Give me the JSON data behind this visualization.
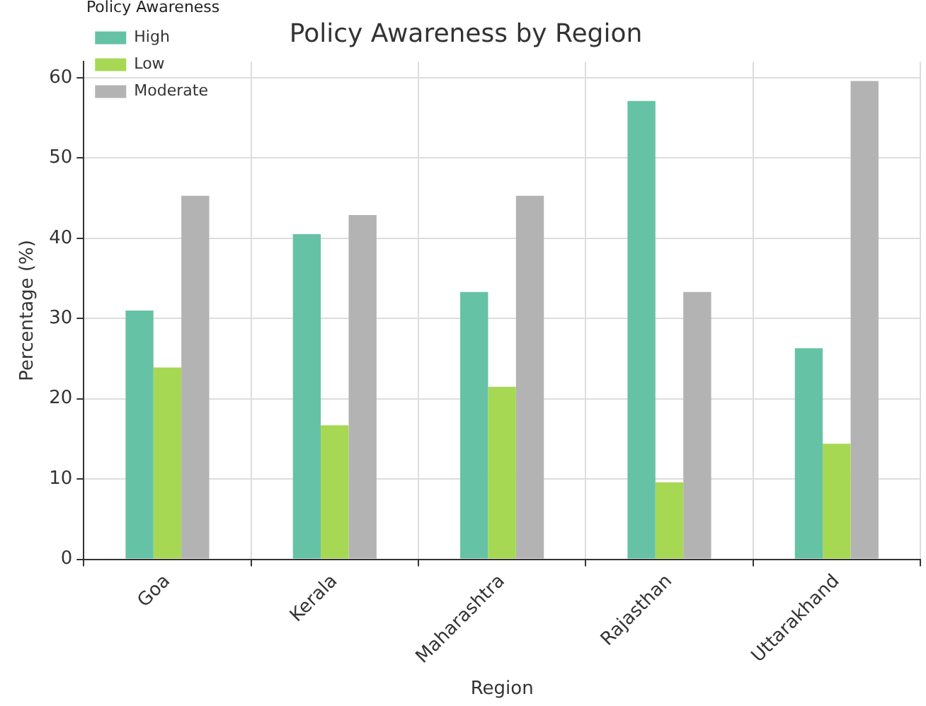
{
  "chart_data": {
    "type": "bar",
    "title": "Policy Awareness by Region",
    "xlabel": "Region",
    "ylabel": "Percentage (%)",
    "legend_title": "Policy Awareness",
    "categories": [
      "Goa",
      "Kerala",
      "Maharashtra",
      "Rajasthan",
      "Uttarakhand"
    ],
    "series": [
      {
        "name": "High",
        "color": "#66c2a5",
        "values": [
          31.0,
          40.5,
          33.3,
          57.1,
          26.3
        ]
      },
      {
        "name": "Low",
        "color": "#a6d854",
        "values": [
          23.9,
          16.7,
          21.5,
          9.6,
          14.4
        ]
      },
      {
        "name": "Moderate",
        "color": "#b3b3b3",
        "values": [
          45.3,
          42.9,
          45.3,
          33.3,
          59.6
        ]
      }
    ],
    "ylim": [
      0,
      62
    ],
    "yticks": [
      0,
      10,
      20,
      30,
      40,
      50,
      60
    ],
    "grid": true,
    "legend": "top left"
  }
}
